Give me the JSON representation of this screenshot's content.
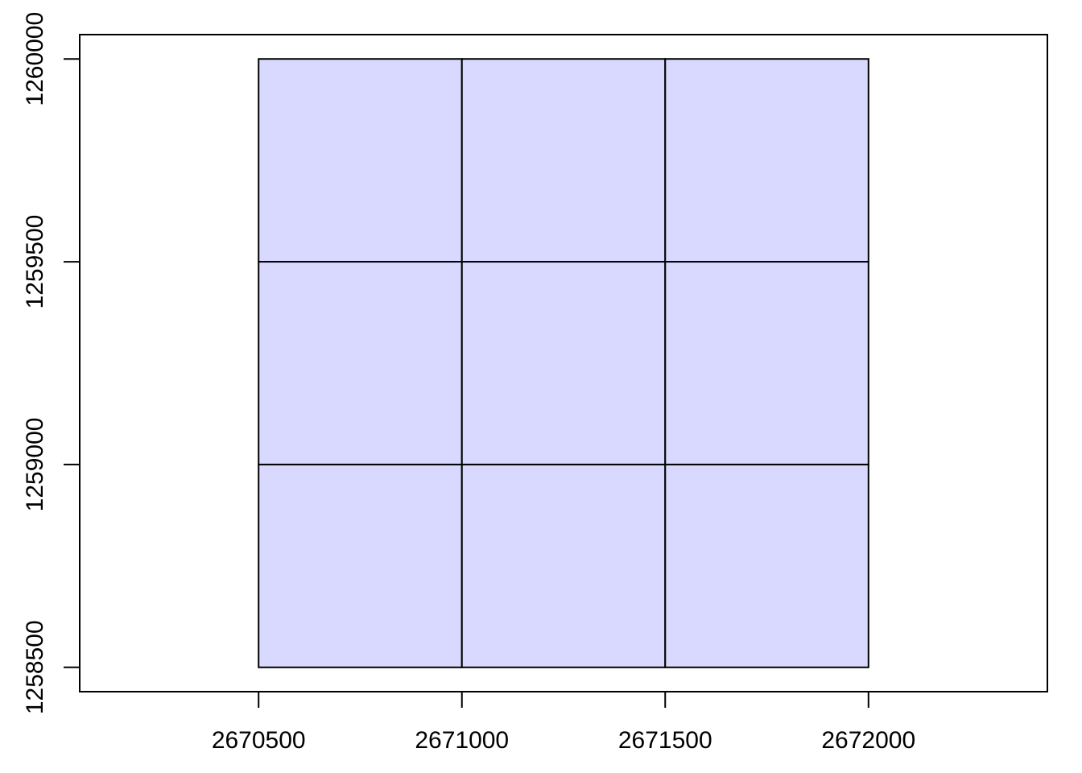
{
  "chart_data": {
    "type": "polygon-grid",
    "xlim": [
      2670060,
      2672440
    ],
    "ylim": [
      1258440,
      1260060
    ],
    "x_ticks": [
      2670500,
      2671000,
      2671500,
      2672000
    ],
    "y_ticks": [
      1258500,
      1259000,
      1259500,
      1260000
    ],
    "x_tick_labels": [
      "2670500",
      "2671000",
      "2671500",
      "2672000"
    ],
    "y_tick_labels": [
      "1258500",
      "1259000",
      "1259500",
      "1260000"
    ],
    "title": "",
    "xlabel": "",
    "ylabel": "",
    "grid": false,
    "fill_color": "#D9D9FF",
    "border_color": "#000000",
    "cells": [
      {
        "xmin": 2670500,
        "xmax": 2671000,
        "ymin": 1259500,
        "ymax": 1260000
      },
      {
        "xmin": 2671000,
        "xmax": 2671500,
        "ymin": 1259500,
        "ymax": 1260000
      },
      {
        "xmin": 2671500,
        "xmax": 2672000,
        "ymin": 1259500,
        "ymax": 1260000
      },
      {
        "xmin": 2670500,
        "xmax": 2671000,
        "ymin": 1259000,
        "ymax": 1259500
      },
      {
        "xmin": 2671000,
        "xmax": 2671500,
        "ymin": 1259000,
        "ymax": 1259500
      },
      {
        "xmin": 2671500,
        "xmax": 2672000,
        "ymin": 1259000,
        "ymax": 1259500
      },
      {
        "xmin": 2670500,
        "xmax": 2671000,
        "ymin": 1258500,
        "ymax": 1259000
      },
      {
        "xmin": 2671000,
        "xmax": 2671500,
        "ymin": 1258500,
        "ymax": 1259000
      },
      {
        "xmin": 2671500,
        "xmax": 2672000,
        "ymin": 1258500,
        "ymax": 1259000
      }
    ]
  }
}
